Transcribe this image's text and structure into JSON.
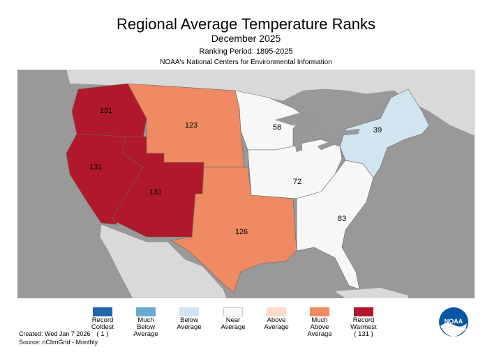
{
  "header": {
    "title": "Regional Average Temperature Ranks",
    "subtitle": "December 2025",
    "period": "Ranking Period: 1895-2025",
    "agency": "NOAA's National Centers for Environmental Information"
  },
  "regions": [
    {
      "name": "Northwest",
      "rank": "131",
      "category": "record-warmest"
    },
    {
      "name": "West",
      "rank": "131",
      "category": "record-warmest"
    },
    {
      "name": "Southwest",
      "rank": "131",
      "category": "record-warmest"
    },
    {
      "name": "Northern Rockies and Plains",
      "rank": "123",
      "category": "much-above"
    },
    {
      "name": "South",
      "rank": "126",
      "category": "much-above"
    },
    {
      "name": "Upper Midwest",
      "rank": "58",
      "category": "near"
    },
    {
      "name": "Ohio Valley",
      "rank": "72",
      "category": "near"
    },
    {
      "name": "Southeast",
      "rank": "83",
      "category": "near"
    },
    {
      "name": "Northeast",
      "rank": "39",
      "category": "below"
    }
  ],
  "legend": [
    {
      "lines": [
        "Record",
        "Coldest",
        "( 1 )"
      ],
      "color": "#2166ac"
    },
    {
      "lines": [
        "Much",
        "Below",
        "Average"
      ],
      "color": "#67a9cf"
    },
    {
      "lines": [
        "Below",
        "Average"
      ],
      "color": "#d1e5f0"
    },
    {
      "lines": [
        "Near",
        "Average"
      ],
      "color": "#f7f7f7"
    },
    {
      "lines": [
        "Above",
        "Average"
      ],
      "color": "#fddbc7"
    },
    {
      "lines": [
        "Much",
        "Above",
        "Average"
      ],
      "color": "#ef8a62"
    },
    {
      "lines": [
        "Record",
        "Warmest",
        "( 131 )"
      ],
      "color": "#b2182b"
    }
  ],
  "footer": {
    "created": "Created: Wed Jan  7 2026",
    "source": "Source: nClimGrid - Monthly"
  },
  "logo": {
    "text": "NOAA"
  },
  "colors": {
    "ocean": "#999999",
    "land": "#d9d9d9",
    "borders": "#777777"
  }
}
